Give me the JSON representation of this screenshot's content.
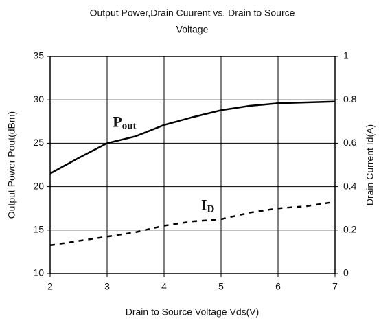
{
  "chart_data": {
    "type": "line",
    "title": [
      "Output Power,Drain Cuurent vs. Drain to Source",
      "Voltage"
    ],
    "x_label": "Drain to Source Voltage Vds(V)",
    "y_label": "Output Power Pout(dBm)",
    "y2_label": "Drain Current Id(A)",
    "x": [
      2,
      2.5,
      3,
      3.5,
      4,
      4.5,
      5,
      5.5,
      6,
      6.5,
      7
    ],
    "series": [
      {
        "name": "Pout",
        "color": "#000000",
        "dash": false,
        "values": [
          21.5,
          23.3,
          25.0,
          25.8,
          27.1,
          28.0,
          28.8,
          29.3,
          29.6,
          29.7,
          29.8
        ]
      },
      {
        "name": "ID",
        "color": "#000000",
        "dash": true,
        "axis": "y2",
        "values": [
          0.13,
          0.15,
          0.17,
          0.19,
          0.22,
          0.24,
          0.25,
          0.28,
          0.3,
          0.31,
          0.33
        ]
      }
    ],
    "annotations": [
      {
        "text": "P",
        "sub": "out",
        "x": 3.1,
        "y": 27.3
      },
      {
        "text": "I",
        "sub": "D",
        "x": 4.65,
        "y": 17.7
      }
    ],
    "xlim": [
      2,
      7
    ],
    "xticks": [
      2,
      3,
      4,
      5,
      6,
      7
    ],
    "ylim": [
      10,
      35
    ],
    "yticks": [
      10,
      15,
      20,
      25,
      30,
      35
    ],
    "y2lim": [
      0,
      1
    ],
    "y2ticks": [
      0,
      0.2,
      0.4,
      0.6,
      0.8,
      1
    ],
    "grid": true
  }
}
